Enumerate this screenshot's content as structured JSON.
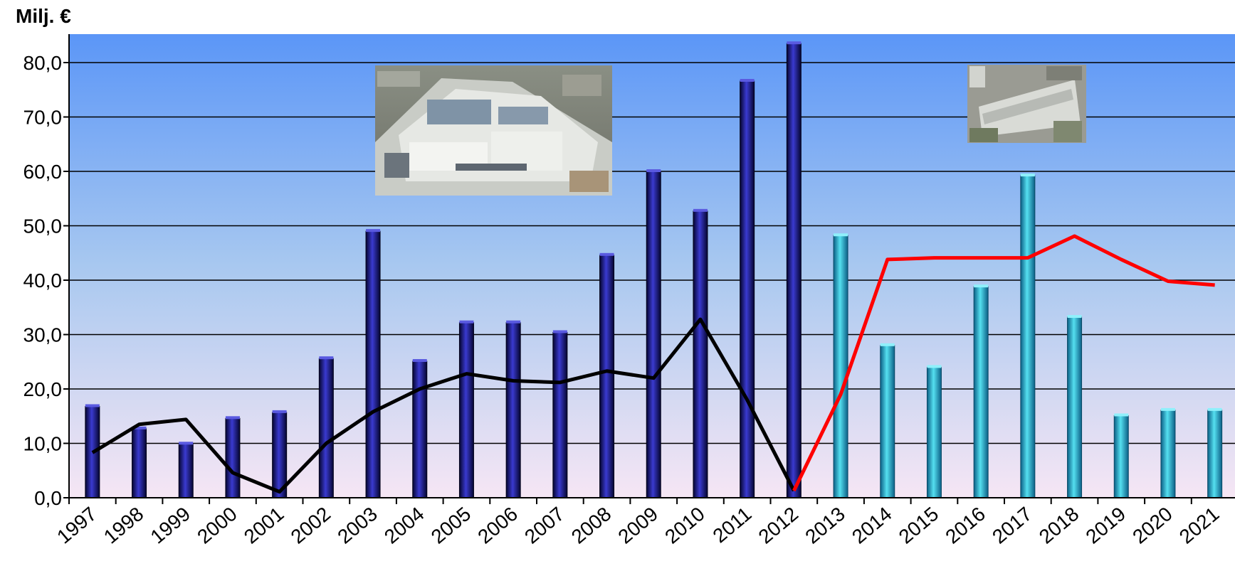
{
  "chart_data": {
    "type": "bar",
    "ylabel": "Milj. €",
    "ylim": [
      0,
      85
    ],
    "yticks": [
      "0,0",
      "10,0",
      "20,0",
      "30,0",
      "40,0",
      "50,0",
      "60,0",
      "70,0",
      "80,0"
    ],
    "ytick_values": [
      0,
      10,
      20,
      30,
      40,
      50,
      60,
      70,
      80
    ],
    "grid": true,
    "categories": [
      "1997",
      "1998",
      "1999",
      "2000",
      "2001",
      "2002",
      "2003",
      "2004",
      "2005",
      "2006",
      "2007",
      "2008",
      "2009",
      "2010",
      "2011",
      "2012",
      "2013",
      "2014",
      "2015",
      "2016",
      "2017",
      "2018",
      "2019",
      "2020",
      "2021"
    ],
    "series": [
      {
        "type": "bar",
        "style": "historical",
        "color": "#1a1a8c",
        "values": [
          16.8,
          12.7,
          9.9,
          14.6,
          15.7,
          25.6,
          49.0,
          25.1,
          32.2,
          32.2,
          30.4,
          44.6,
          60.0,
          52.7,
          76.6,
          83.5,
          null,
          null,
          null,
          null,
          null,
          null,
          null,
          null,
          null
        ]
      },
      {
        "type": "bar",
        "style": "forecast",
        "color": "#33c6dc",
        "values": [
          null,
          null,
          null,
          null,
          null,
          null,
          null,
          null,
          null,
          null,
          null,
          null,
          null,
          null,
          null,
          null,
          48.2,
          28.0,
          24.0,
          38.8,
          59.2,
          33.2,
          15.1,
          16.1,
          16.1
        ]
      },
      {
        "type": "line",
        "style": "historical",
        "color": "#000000",
        "values": [
          8.3,
          13.5,
          14.4,
          4.6,
          1.1,
          10.0,
          15.8,
          20.0,
          22.8,
          21.5,
          21.2,
          23.3,
          22.0,
          32.8,
          18.0,
          1.3,
          null,
          null,
          null,
          null,
          null,
          null,
          null,
          null,
          null
        ]
      },
      {
        "type": "line",
        "style": "forecast",
        "color": "#ff0000",
        "values": [
          null,
          null,
          null,
          null,
          null,
          null,
          null,
          null,
          null,
          null,
          null,
          null,
          null,
          null,
          null,
          1.3,
          19.0,
          43.8,
          44.1,
          44.1,
          44.1,
          48.1,
          43.8,
          39.8,
          39.1
        ]
      }
    ],
    "photos": [
      "hospital-campus-photo",
      "apartment-building-photo"
    ]
  }
}
